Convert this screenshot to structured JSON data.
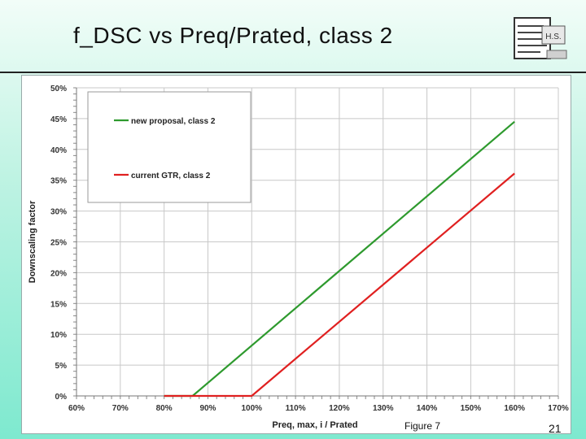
{
  "slide": {
    "title": "f_DSC vs Preq/Prated, class 2",
    "figure_caption": "Figure 7",
    "page_number": "21",
    "logo_text": "H.S."
  },
  "chart_data": {
    "type": "line",
    "xlabel": "Preq, max, i / Prated",
    "ylabel": "Downscaling factor",
    "xlim": [
      0.6,
      1.7
    ],
    "ylim": [
      0.0,
      0.5
    ],
    "x_ticks": [
      "60%",
      "70%",
      "80%",
      "90%",
      "100%",
      "110%",
      "120%",
      "130%",
      "140%",
      "150%",
      "160%",
      "170%"
    ],
    "y_ticks": [
      "0%",
      "5%",
      "10%",
      "15%",
      "20%",
      "25%",
      "30%",
      "35%",
      "40%",
      "45%",
      "50%"
    ],
    "grid": true,
    "legend_position": "top-left",
    "series": [
      {
        "name": "new proposal, class 2",
        "color": "#2e9a2e",
        "points": [
          [
            0.8,
            0.0
          ],
          [
            0.865,
            0.0
          ],
          [
            1.6,
            0.445
          ]
        ]
      },
      {
        "name": "current GTR, class 2",
        "color": "#e02020",
        "points": [
          [
            0.8,
            0.0
          ],
          [
            1.0,
            0.0
          ],
          [
            1.6,
            0.361
          ]
        ]
      }
    ]
  }
}
